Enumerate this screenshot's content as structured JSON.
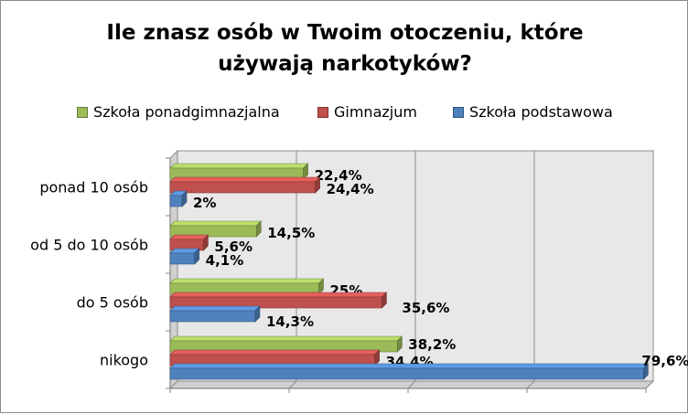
{
  "chart_data": {
    "type": "bar",
    "orientation": "horizontal",
    "title_lines": [
      "Ile znasz osób w Twoim otoczeniu, które",
      "używają narkotyków?"
    ],
    "categories": [
      "ponad 10 osób",
      "od 5 do 10 osób",
      "do 5 osób",
      "nikogo"
    ],
    "series": [
      {
        "name": "Szkoła ponadgimnazjalna",
        "color": "#9bbb59",
        "values": [
          22.4,
          14.5,
          25,
          38.2
        ],
        "labels": [
          "22,4%",
          "14,5%",
          "25%",
          "38,2%"
        ]
      },
      {
        "name": "Gimnazjum",
        "color": "#c0504d",
        "values": [
          24.4,
          5.6,
          35.6,
          34.4
        ],
        "labels": [
          "24,4%",
          "5,6%",
          "35,6%",
          "34,4%"
        ]
      },
      {
        "name": "Szkoła podstawowa",
        "color": "#4f81bd",
        "values": [
          2,
          4.1,
          14.3,
          79.6
        ],
        "labels": [
          "2%",
          "4,1%",
          "14,3%",
          "79,6%"
        ]
      }
    ],
    "legend_order": [
      0,
      1,
      2
    ],
    "legend_position": "top",
    "xlim": [
      0,
      80
    ],
    "grid": true,
    "style": "3d-bar"
  }
}
